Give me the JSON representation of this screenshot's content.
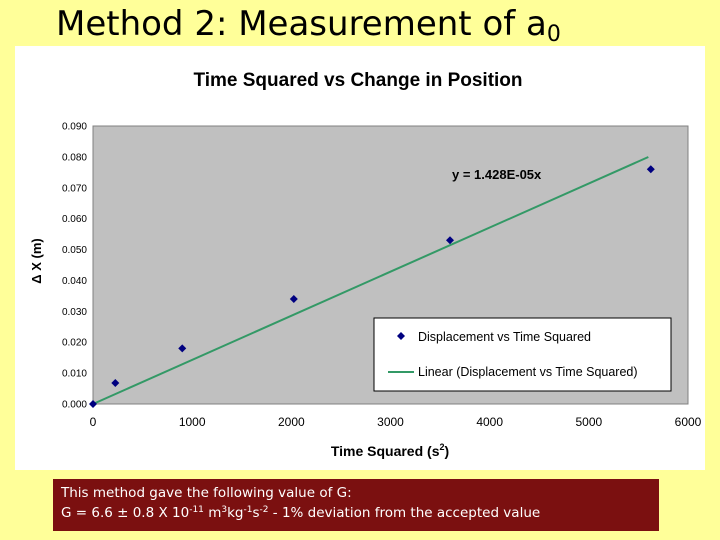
{
  "slide": {
    "title_main": "Method 2: Measurement of a",
    "title_sub": "0"
  },
  "chart_data": {
    "type": "scatter",
    "title": "Time Squared vs Change in Position",
    "xlabel_base": "Time Squared (s",
    "xlabel_sup": "2",
    "xlabel_end": ")",
    "ylabel": "Δ X (m)",
    "xlim": [
      0,
      6000
    ],
    "ylim": [
      0,
      0.09
    ],
    "x_ticks": [
      "0",
      "1000",
      "2000",
      "3000",
      "4000",
      "5000",
      "6000"
    ],
    "y_ticks": [
      "0.000",
      "0.010",
      "0.020",
      "0.030",
      "0.040",
      "0.050",
      "0.060",
      "0.070",
      "0.080",
      "0.090"
    ],
    "grid": false,
    "plot_background": "#c0c0c0",
    "series": [
      {
        "name": "Displacement vs Time Squared",
        "color": "#000080",
        "marker": "diamond",
        "points": [
          [
            0,
            0.0
          ],
          [
            225,
            0.0068
          ],
          [
            900,
            0.018
          ],
          [
            2025,
            0.034
          ],
          [
            3600,
            0.053
          ],
          [
            5625,
            0.076
          ]
        ]
      }
    ],
    "trendline": {
      "name": "Linear (Displacement vs Time Squared)",
      "color": "#339966",
      "slope": 1.428e-05,
      "intercept": 0,
      "x_range": [
        0,
        5600
      ],
      "equation": "y = 1.428E-05x"
    },
    "legend_position": "bottom-right"
  },
  "result": {
    "line1": "This method gave the following value of G:",
    "line2_a": "G = 6.6 ± 0.8 X 10",
    "line2_b": "-11",
    "line2_c": " m",
    "line2_d": "3",
    "line2_e": "kg",
    "line2_f": "-1",
    "line2_g": "s",
    "line2_h": "-2",
    "line2_i": "  - 1% deviation from the accepted value"
  }
}
